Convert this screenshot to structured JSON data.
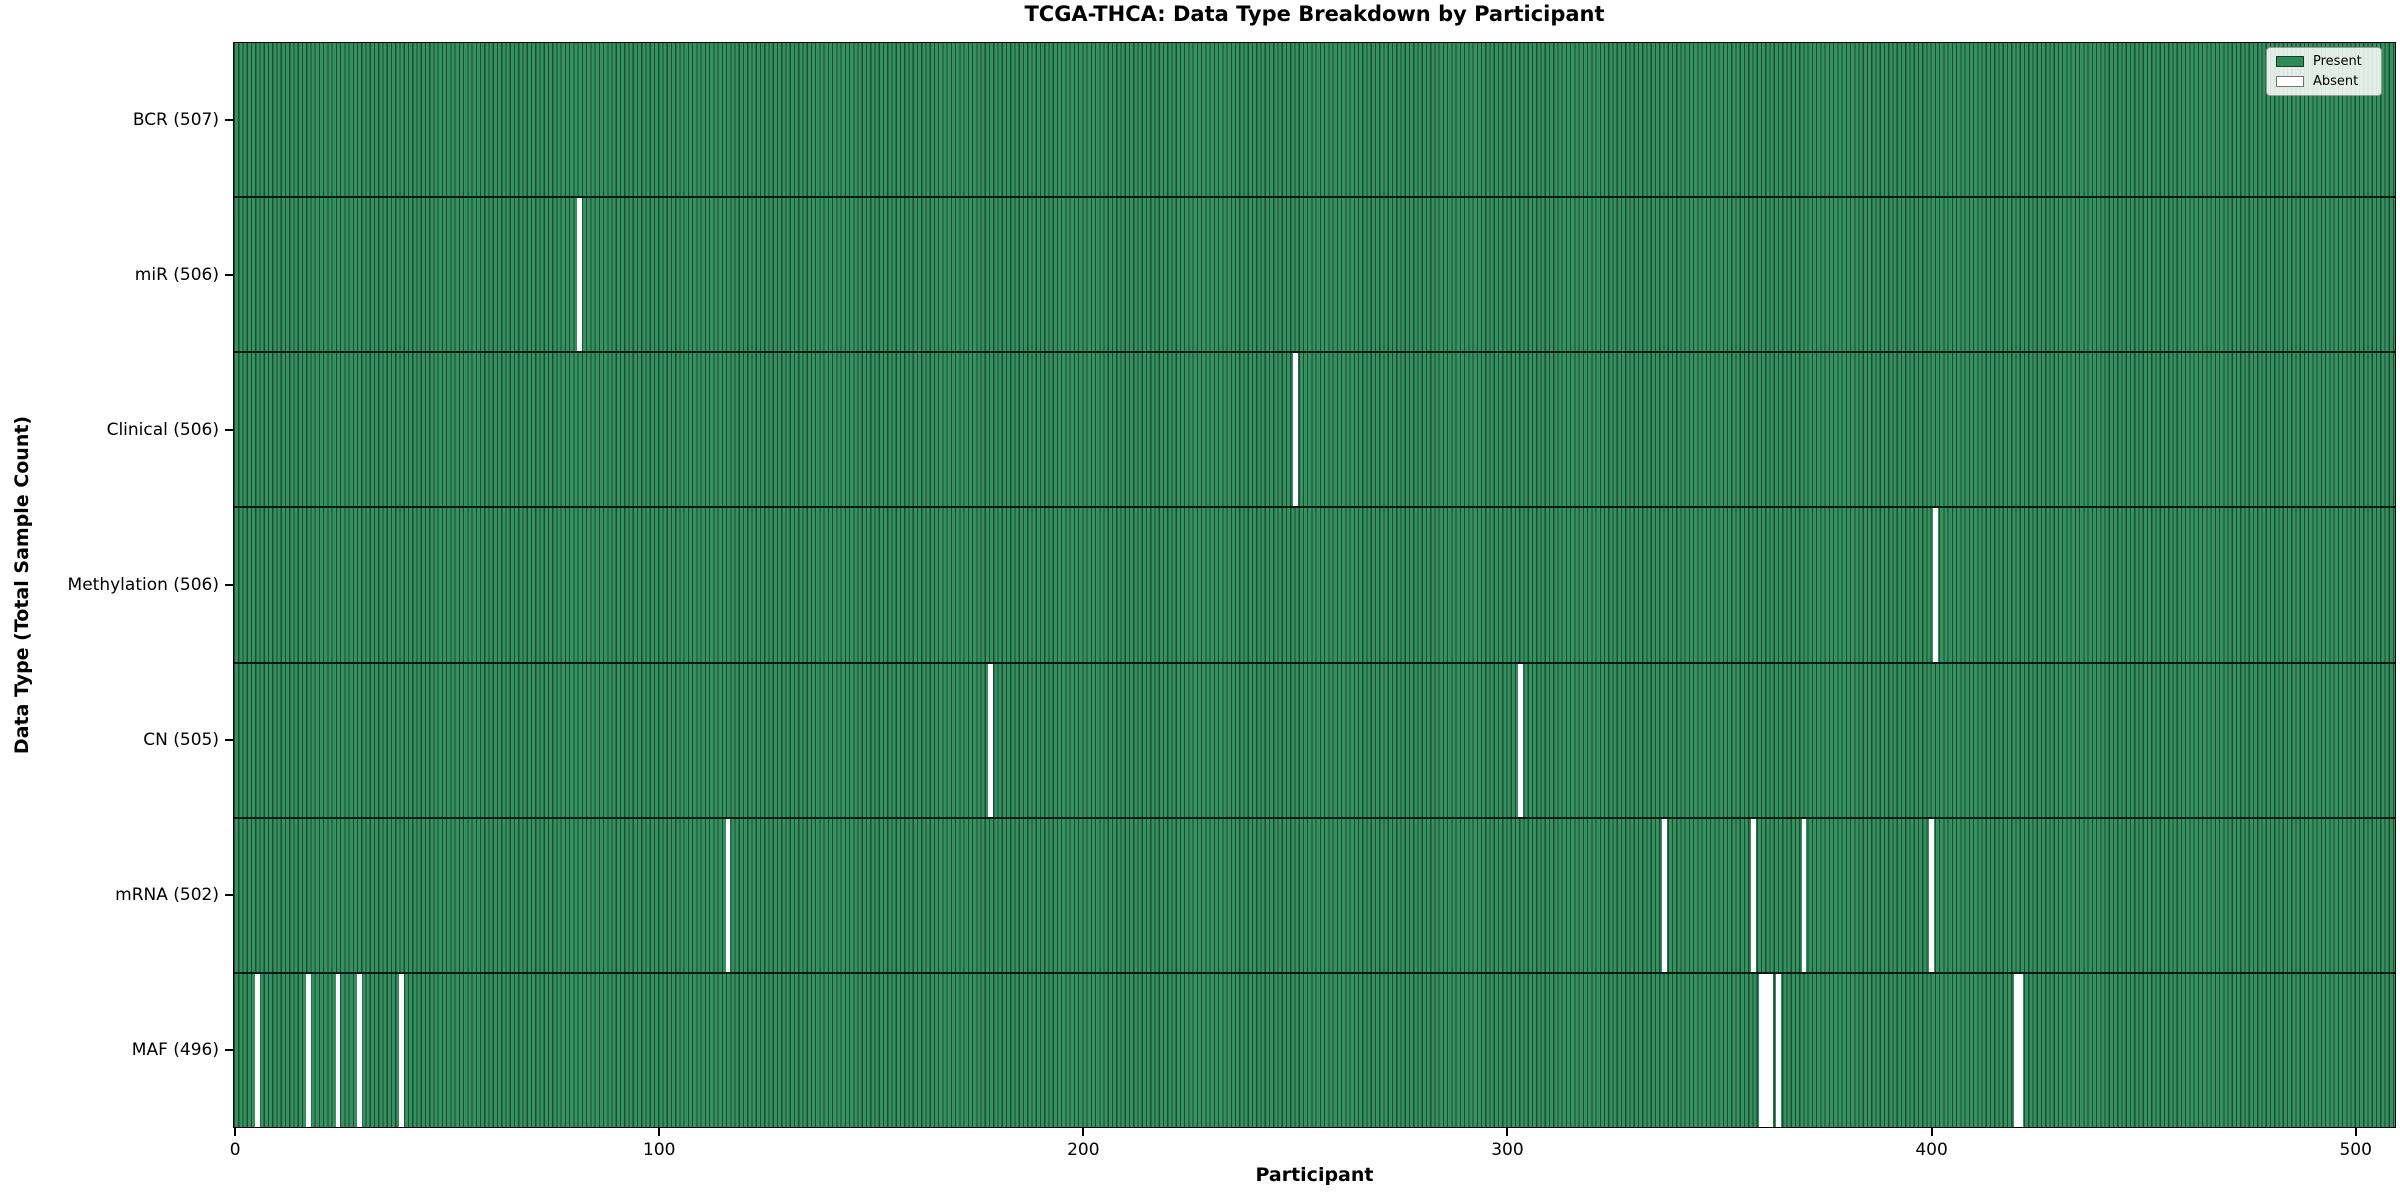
{
  "chart_data": {
    "type": "heatmap",
    "title": "TCGA-THCA: Data Type Breakdown by Participant",
    "xlabel": "Participant",
    "ylabel": "Data Type (Total Sample Count)",
    "x_ticks": [
      0,
      100,
      200,
      300,
      400,
      500
    ],
    "x_range": [
      -0.5,
      509.5
    ],
    "n_participants": 507,
    "grid": false,
    "legend_position": "upper right",
    "legend": [
      {
        "label": "Present",
        "color": "#2e8b57"
      },
      {
        "label": "Absent",
        "color": "#ffffff"
      }
    ],
    "rows": [
      {
        "label": "BCR (507)",
        "name": "BCR",
        "present_count": 507,
        "absent_participants": []
      },
      {
        "label": "miR (506)",
        "name": "miR",
        "present_count": 506,
        "absent_participants": [
          81
        ]
      },
      {
        "label": "Clinical (506)",
        "name": "Clinical",
        "present_count": 506,
        "absent_participants": [
          250
        ]
      },
      {
        "label": "Methylation (506)",
        "name": "Methylation",
        "present_count": 506,
        "absent_participants": [
          401
        ]
      },
      {
        "label": "CN (505)",
        "name": "CN",
        "present_count": 505,
        "absent_participants": [
          178,
          303
        ]
      },
      {
        "label": "mRNA (502)",
        "name": "mRNA",
        "present_count": 502,
        "absent_participants": [
          116,
          337,
          358,
          370,
          400
        ]
      },
      {
        "label": "MAF (496)",
        "name": "MAF",
        "present_count": 496,
        "absent_participants": [
          5,
          17,
          24,
          29,
          39,
          360,
          361,
          362,
          364,
          420,
          421
        ]
      }
    ],
    "colors": {
      "present_fill": "#2e8b57",
      "bar_edge": "#1e4d33",
      "row_divider": "#1a1a1a",
      "absent_fill": "#ffffff"
    }
  }
}
